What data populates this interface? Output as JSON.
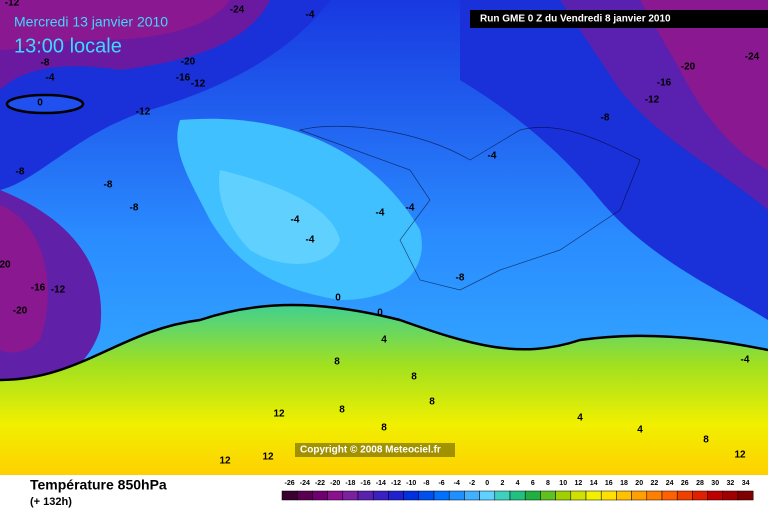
{
  "header": {
    "date": "Mercredi 13 janvier 2010",
    "time": "13:00 locale",
    "run": "Run GME 0 Z du Vendredi 8 janvier 2010"
  },
  "map": {
    "labels": [
      "-12",
      "-24",
      "-4",
      "-8",
      "-4",
      "0",
      "-20",
      "-16",
      "-12",
      "-12",
      "-8",
      "-8",
      "-8",
      "20",
      "-16",
      "-12",
      "-20",
      "-24",
      "-20",
      "-16",
      "-12",
      "-8",
      "-4",
      "-4",
      "-4",
      "-4",
      "-4",
      "-8",
      "0",
      "0",
      "4",
      "8",
      "12",
      "8",
      "8",
      "8",
      "8",
      "4",
      "4",
      "8",
      "12",
      "12",
      "12",
      "-4"
    ],
    "copyright": "Copyright © 2008 Meteociel.fr"
  },
  "footer": {
    "title": "Température 850hPa",
    "lead": "(+ 132h)",
    "scale": [
      -26,
      -24,
      -22,
      -20,
      -18,
      -16,
      -14,
      -12,
      -10,
      -8,
      -6,
      -4,
      -2,
      0,
      2,
      4,
      6,
      8,
      10,
      12,
      14,
      16,
      18,
      20,
      22,
      24,
      26,
      28,
      30,
      32,
      34
    ],
    "colors": [
      "#3a0030",
      "#5a0050",
      "#700070",
      "#8a1090",
      "#7a20a0",
      "#5a20b0",
      "#3a20c0",
      "#2020d0",
      "#0030e0",
      "#0050f0",
      "#0070ff",
      "#2090ff",
      "#40b0ff",
      "#60d0ff",
      "#40d0c0",
      "#20c080",
      "#20b040",
      "#60c020",
      "#a0d000",
      "#d0e000",
      "#f0f000",
      "#ffe000",
      "#ffc000",
      "#ffa000",
      "#ff8000",
      "#ff6000",
      "#f04000",
      "#e02000",
      "#c00000",
      "#a00000",
      "#800000"
    ]
  }
}
